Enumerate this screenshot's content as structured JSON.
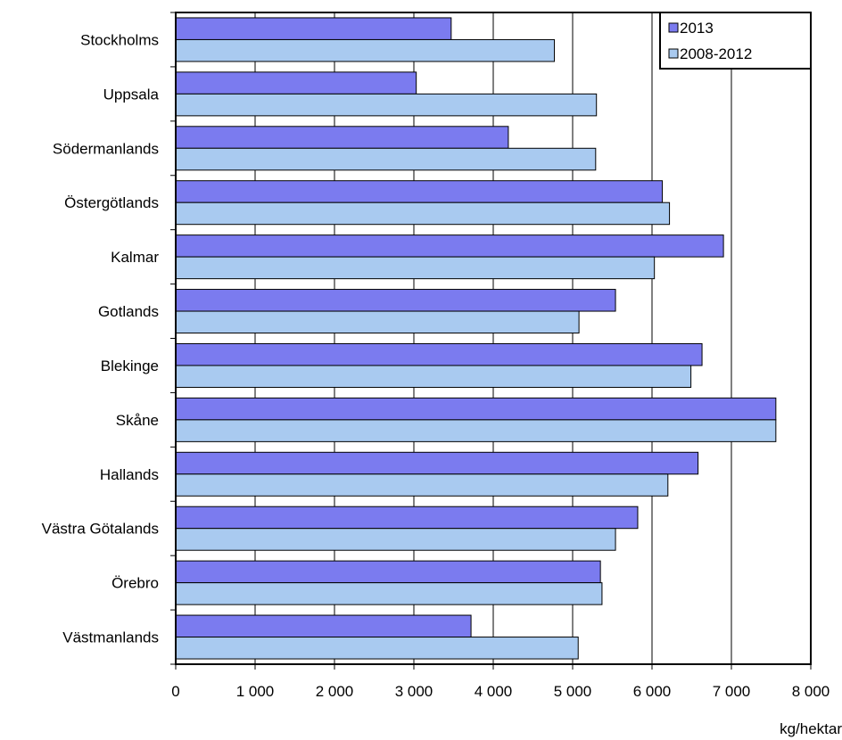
{
  "chart_data": {
    "type": "bar",
    "orientation": "horizontal",
    "categories": [
      "Stockholms",
      "Uppsala",
      "Södermanlands",
      "Östergötlands",
      "Kalmar",
      "Gotlands",
      "Blekinge",
      "Skåne",
      "Hallands",
      "Västra Götalands",
      "Örebro",
      "Västmanlands"
    ],
    "series": [
      {
        "name": "2013",
        "color": "#7b7bef",
        "values": [
          3470,
          3030,
          4190,
          6130,
          6900,
          5540,
          6630,
          7560,
          6580,
          5820,
          5350,
          3720
        ]
      },
      {
        "name": "2008-2012",
        "color": "#a9caf0",
        "values": [
          4770,
          5300,
          5290,
          6220,
          6030,
          5080,
          6490,
          7560,
          6200,
          5540,
          5370,
          5070
        ]
      }
    ],
    "xlim": [
      0,
      8000
    ],
    "xticks": [
      "0",
      "1 000",
      "2 000",
      "3 000",
      "4 000",
      "5 000",
      "6 000",
      "7 000",
      "8 000"
    ],
    "xunit_label": "kg/hektar",
    "grid": "vertical",
    "legend_position": "top-right"
  }
}
